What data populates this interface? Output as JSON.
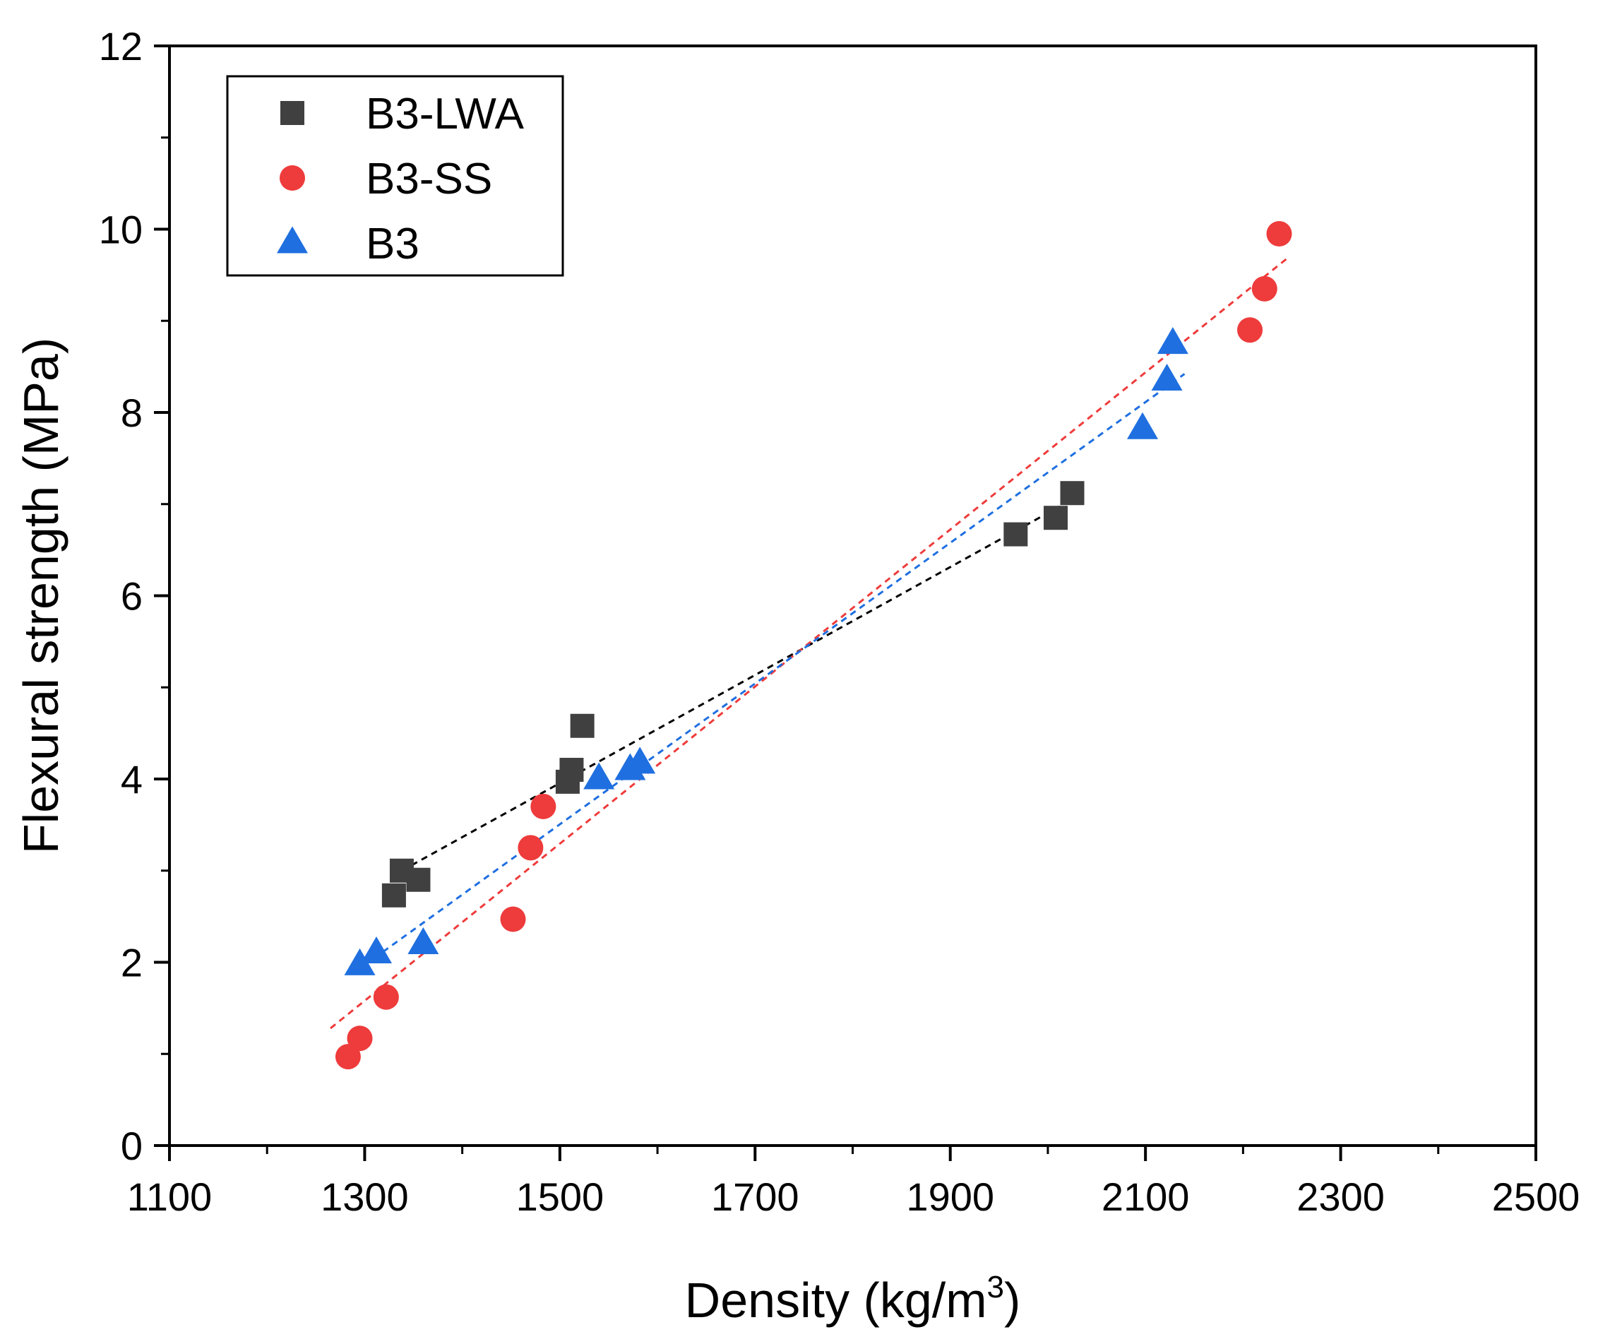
{
  "chart_data": {
    "type": "scatter",
    "title": "",
    "xlabel": "Density (kg/m",
    "xlabel_superscript": "3",
    "xlabel_suffix": ")",
    "ylabel": "Flexural strength (MPa)",
    "xlim": [
      1100,
      2500
    ],
    "ylim": [
      0,
      12
    ],
    "x_ticks": [
      1100,
      1300,
      1500,
      1700,
      1900,
      2100,
      2300,
      2500
    ],
    "y_ticks": [
      0,
      2,
      4,
      6,
      8,
      10,
      12
    ],
    "grid": false,
    "legend_position": "top-left",
    "series": [
      {
        "name": "B3-LWA",
        "marker": "square",
        "color": "#404040",
        "points": [
          {
            "x": 1330,
            "y": 2.73
          },
          {
            "x": 1338,
            "y": 3.0
          },
          {
            "x": 1355,
            "y": 2.9
          },
          {
            "x": 1508,
            "y": 3.97
          },
          {
            "x": 1512,
            "y": 4.1
          },
          {
            "x": 1523,
            "y": 4.58
          },
          {
            "x": 1967,
            "y": 6.67
          },
          {
            "x": 2008,
            "y": 6.85
          },
          {
            "x": 2025,
            "y": 7.12
          }
        ],
        "trend": {
          "x": [
            1338,
            2025
          ],
          "y": [
            3.0,
            7.05
          ]
        }
      },
      {
        "name": "B3-SS",
        "marker": "circle",
        "color": "#ee3b3b",
        "points": [
          {
            "x": 1283,
            "y": 0.97
          },
          {
            "x": 1295,
            "y": 1.17
          },
          {
            "x": 1322,
            "y": 1.62
          },
          {
            "x": 1452,
            "y": 2.47
          },
          {
            "x": 1470,
            "y": 3.25
          },
          {
            "x": 1483,
            "y": 3.7
          },
          {
            "x": 2207,
            "y": 8.9
          },
          {
            "x": 2222,
            "y": 9.35
          },
          {
            "x": 2237,
            "y": 9.95
          }
        ],
        "trend": {
          "x": [
            1265,
            2245
          ],
          "y": [
            1.28,
            9.68
          ]
        }
      },
      {
        "name": "B3",
        "marker": "triangle",
        "color": "#1f6fe0",
        "points": [
          {
            "x": 1295,
            "y": 1.97
          },
          {
            "x": 1312,
            "y": 2.1
          },
          {
            "x": 1360,
            "y": 2.2
          },
          {
            "x": 1540,
            "y": 4.0
          },
          {
            "x": 1572,
            "y": 4.1
          },
          {
            "x": 1582,
            "y": 4.17
          },
          {
            "x": 2097,
            "y": 7.82
          },
          {
            "x": 2122,
            "y": 8.35
          },
          {
            "x": 2128,
            "y": 8.75
          }
        ],
        "trend": {
          "x": [
            1300,
            2140
          ],
          "y": [
            1.97,
            8.42
          ]
        }
      }
    ]
  }
}
